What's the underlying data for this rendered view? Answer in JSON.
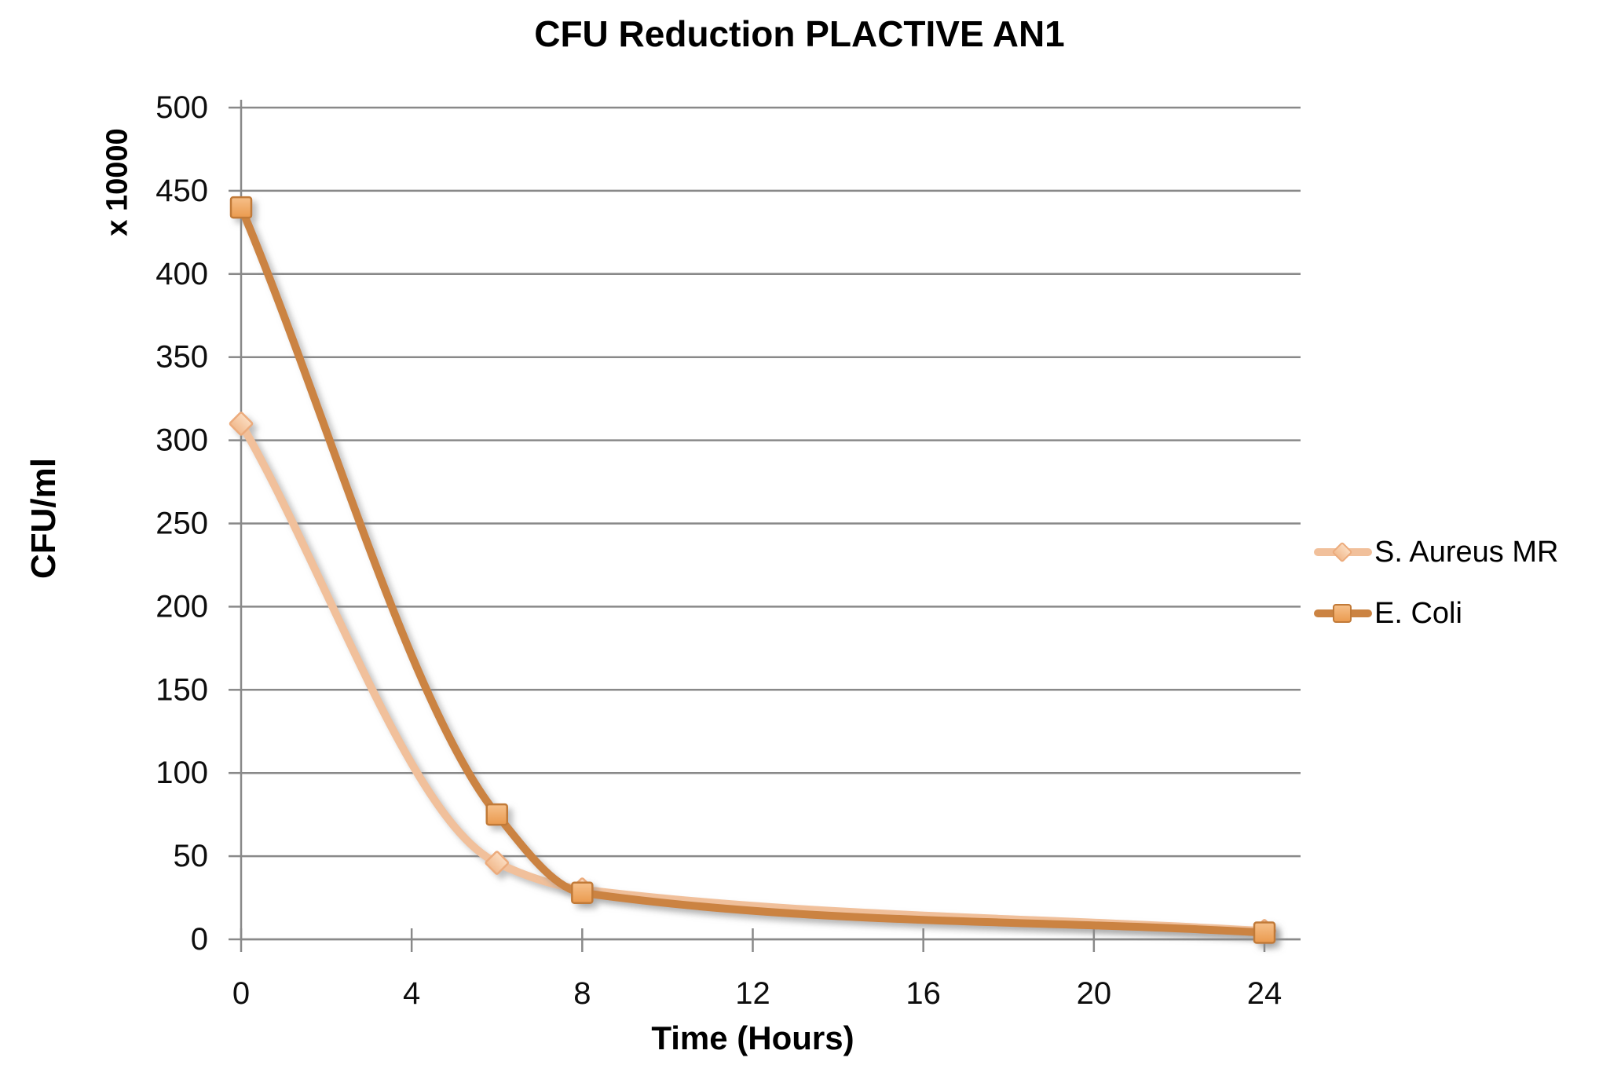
{
  "chart_data": {
    "type": "line",
    "title": "CFU Reduction PLACTIVE AN1",
    "xlabel": "Time (Hours)",
    "ylabel": "CFU/ml",
    "ylabel_unit": "x 10000",
    "x": [
      0,
      6,
      8,
      24
    ],
    "x_ticks": [
      0,
      4,
      8,
      12,
      16,
      20,
      24
    ],
    "y_ticks": [
      0,
      50,
      100,
      150,
      200,
      250,
      300,
      350,
      400,
      450,
      500
    ],
    "xlim": [
      0,
      24
    ],
    "ylim": [
      0,
      500
    ],
    "grid": true,
    "legend_position": "right-middle",
    "background_color": "#ffffff",
    "gridline_color": "#898989",
    "axis_color": "#898989",
    "tick_label_color": "#0d0d0d",
    "series": [
      {
        "name": "S. Aureus MR",
        "marker": "diamond",
        "values": [
          310,
          46,
          30,
          5
        ],
        "line_color": "#f1c09b",
        "marker_fill_top": "#fbdcc0",
        "marker_fill_bottom": "#f1ba8e",
        "marker_stroke": "#ecab7c"
      },
      {
        "name": "E. Coli",
        "marker": "square",
        "values": [
          440,
          75,
          28,
          4
        ],
        "line_color": "#cb8342",
        "marker_fill_top": "#f6c08a",
        "marker_fill_bottom": "#ea9a4e",
        "marker_stroke": "#c17a38"
      }
    ]
  }
}
